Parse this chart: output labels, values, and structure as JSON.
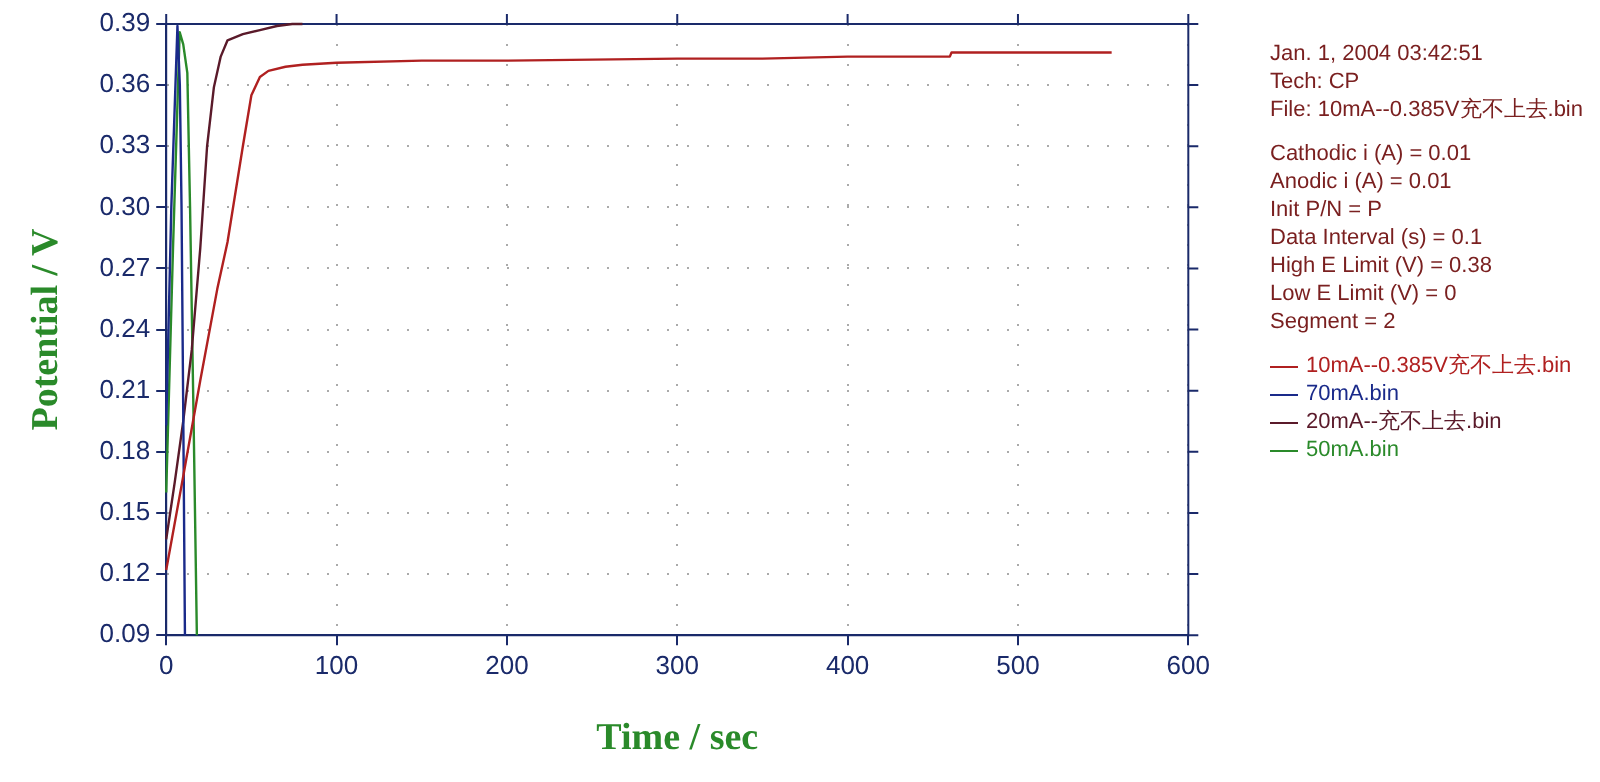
{
  "chart_data": {
    "type": "line",
    "xlabel": "Time / sec",
    "ylabel": "Potential / V",
    "xlim": [
      0,
      600
    ],
    "xticks": [
      0,
      100,
      200,
      300,
      400,
      500,
      600
    ],
    "ylim": [
      0.09,
      0.39
    ],
    "yticks": [
      0.09,
      0.12,
      0.15,
      0.18,
      0.21,
      0.24,
      0.27,
      {
        "value": 0.3,
        "label": "0.30"
      },
      0.33,
      0.36,
      0.39
    ],
    "grid": true,
    "legend": "right",
    "marker": "none",
    "line_style": "solid",
    "annotations": [
      "Jan. 1, 2004    03:42:51",
      "Tech: CP",
      "File: 10mA--0.385V充不上去.bin",
      "Cathodic i (A) = 0.01",
      "Anodic i (A) = 0.01",
      "Init P/N = P",
      "Data Interval (s) = 0.1",
      "High E Limit (V) = 0.38",
      "Low E Limit (V) = 0",
      "Segment = 2"
    ],
    "series": [
      {
        "name": "10mA--0.385V充不上去.bin",
        "color": "#b02020",
        "x": [
          0,
          10,
          20,
          30,
          36,
          45,
          50,
          55,
          60,
          70,
          80,
          100,
          150,
          200,
          300,
          350,
          400,
          460,
          461,
          555
        ],
        "values": [
          0.122,
          0.168,
          0.215,
          0.26,
          0.283,
          0.33,
          0.355,
          0.364,
          0.367,
          0.369,
          0.37,
          0.371,
          0.372,
          0.372,
          0.373,
          0.373,
          0.374,
          0.374,
          0.376,
          0.376
        ]
      },
      {
        "name": "70mA.bin",
        "color": "#1a2a8a",
        "x": [
          0,
          3,
          6.6,
          8,
          9,
          10,
          11
        ],
        "values": [
          0.193,
          0.3,
          0.389,
          0.36,
          0.3,
          0.2,
          0.09
        ]
      },
      {
        "name": "20mA--充不上去.bin",
        "color": "#5a1a2a",
        "x": [
          0,
          5,
          10,
          15,
          20,
          24,
          28,
          32,
          36,
          45,
          55,
          65,
          74,
          80
        ],
        "values": [
          0.137,
          0.165,
          0.195,
          0.23,
          0.28,
          0.33,
          0.359,
          0.374,
          0.382,
          0.385,
          0.387,
          0.389,
          0.39,
          0.39
        ]
      },
      {
        "name": "50mA.bin",
        "color": "#2a8a2a",
        "x": [
          0,
          4,
          7.9,
          10,
          12.4,
          14,
          16,
          18
        ],
        "values": [
          0.16,
          0.28,
          0.386,
          0.38,
          0.366,
          0.3,
          0.2,
          0.09
        ]
      }
    ]
  }
}
